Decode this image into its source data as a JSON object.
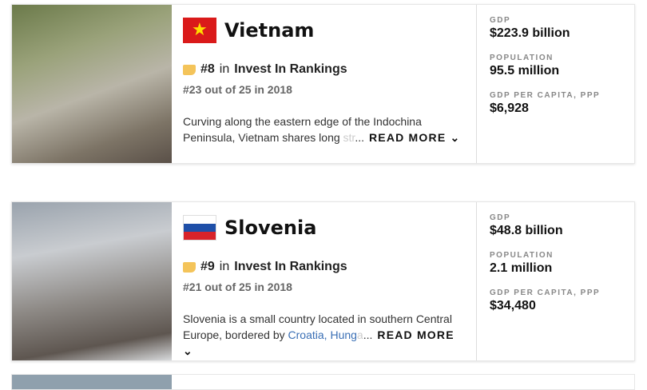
{
  "countries": [
    {
      "name": "Vietnam",
      "rank": "#8",
      "rank_in": "in",
      "ranking": "Invest In Rankings",
      "previous": "#23 out of 25 in 2018",
      "desc_1": "Curving along the eastern edge of the Indochina Peninsula, Vietnam shares long ",
      "desc_fade": "str",
      "ellipsis": "...",
      "read_more": "READ MORE ⌄",
      "stats": [
        {
          "label": "GDP",
          "value": "$223.9 billion"
        },
        {
          "label": "POPULATION",
          "value": "95.5 million"
        },
        {
          "label": "GDP PER CAPITA, PPP",
          "value": "$6,928"
        }
      ]
    },
    {
      "name": "Slovenia",
      "rank": "#9",
      "rank_in": "in",
      "ranking": "Invest In Rankings",
      "previous": "#21 out of 25 in 2018",
      "desc_1": "Slovenia is a small country located in southern Central Europe, bordered by ",
      "link_1": "Croatia",
      "sep": ", ",
      "link_2": "Hung",
      "desc_fade": "a",
      "ellipsis": "...",
      "read_more": "READ MORE ⌄",
      "stats": [
        {
          "label": "GDP",
          "value": "$48.8 billion"
        },
        {
          "label": "POPULATION",
          "value": "2.1 million"
        },
        {
          "label": "GDP PER CAPITA, PPP",
          "value": "$34,480"
        }
      ]
    }
  ],
  "colors": {
    "badge": "#f4c45a",
    "link": "#3a6fb5"
  }
}
